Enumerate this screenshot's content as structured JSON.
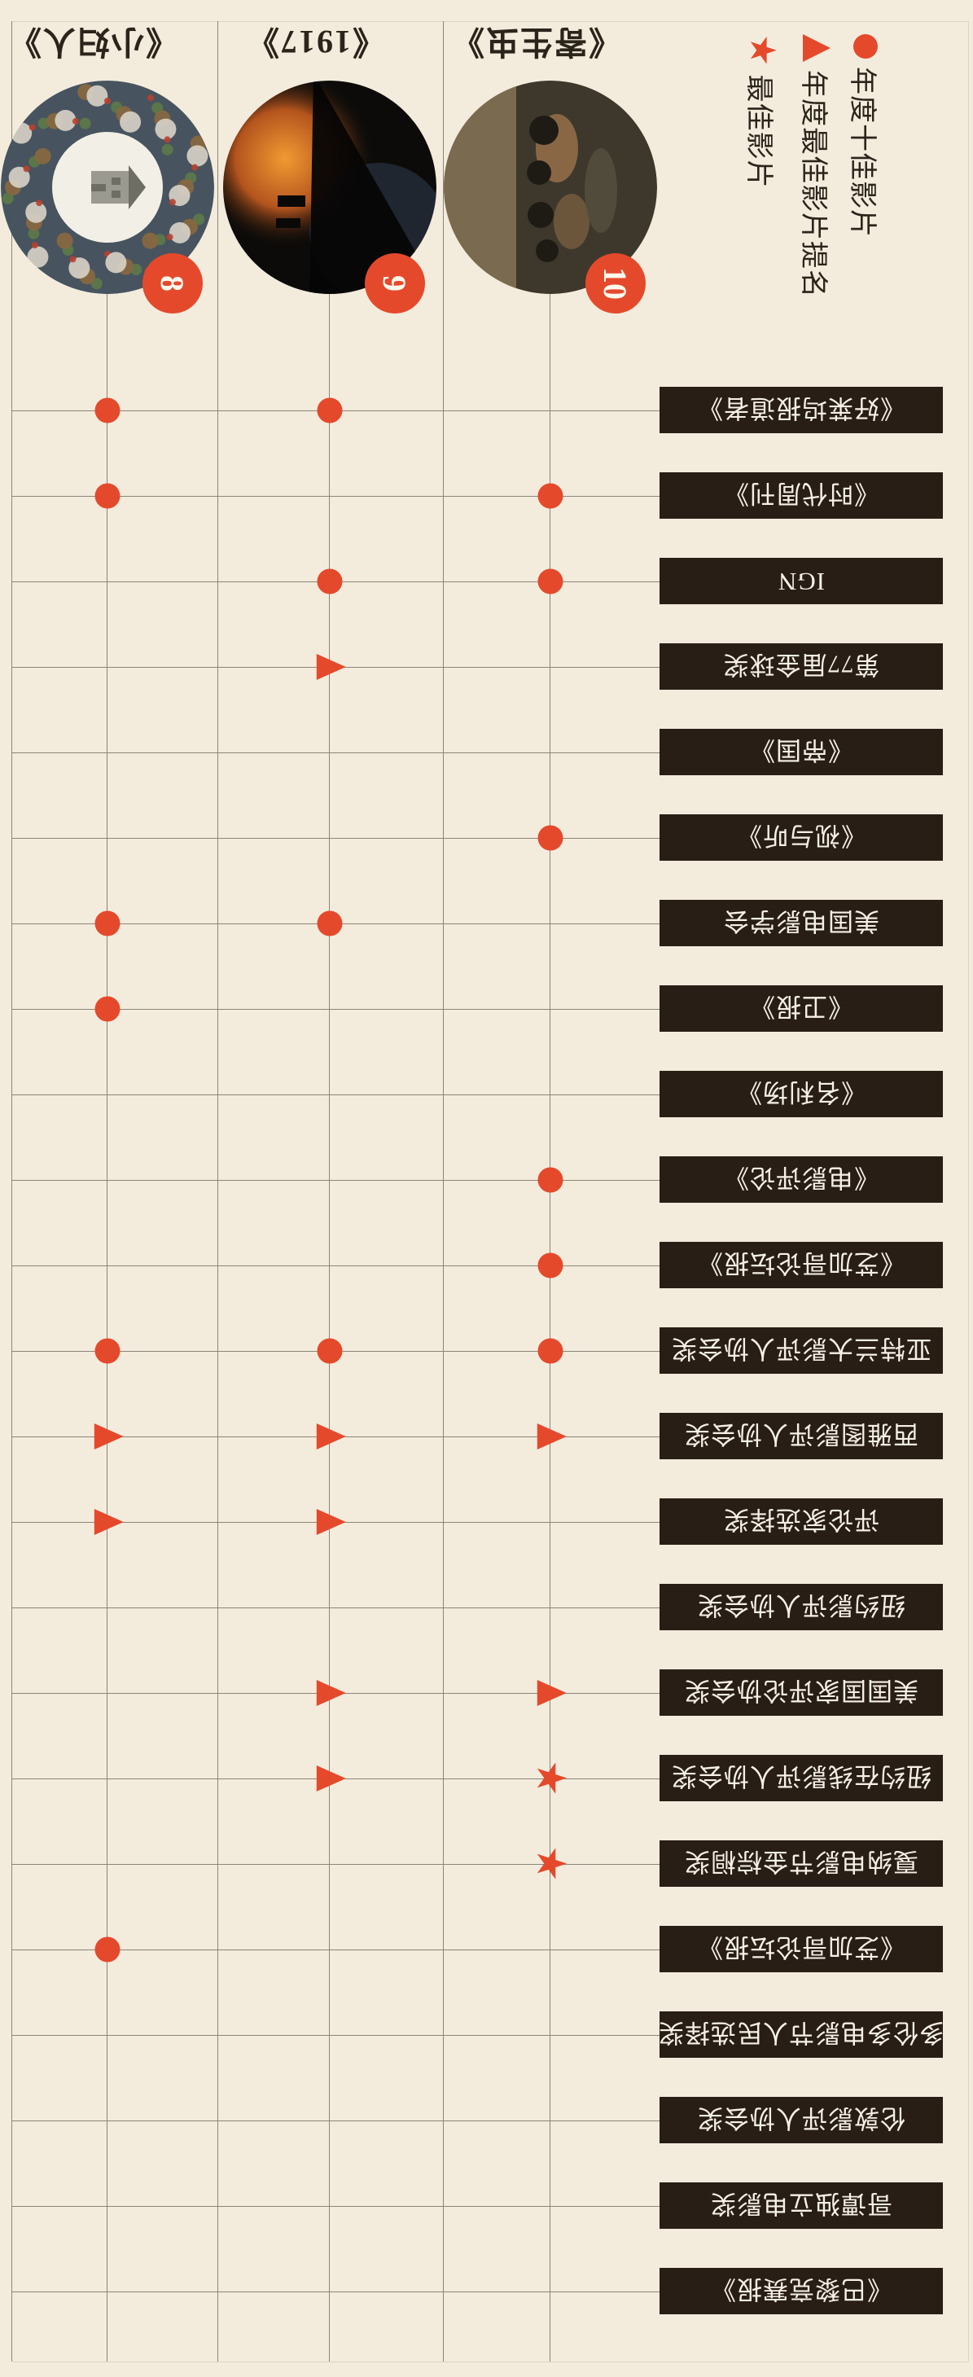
{
  "colors": {
    "background": "#F3ECDD",
    "accent": "#E5492B",
    "grid": "#8B8478",
    "frame_light": "#DCD5C3",
    "bar_background": "#281E15",
    "bar_text": "#F6F1E6",
    "ink": "#2B241B"
  },
  "legend": {
    "items": [
      {
        "marker": "dot",
        "symbol": "●",
        "label": "年度十佳影片"
      },
      {
        "marker": "triangle",
        "symbol": "▲",
        "label": "年度最佳影片提名"
      },
      {
        "marker": "star",
        "symbol": "★",
        "label": "最佳影片"
      }
    ]
  },
  "movies": [
    {
      "badge": "8",
      "title": "《小妇人》",
      "art": {
        "base": "#47545F",
        "center": "#F2EFE6",
        "house": "#9A9A90",
        "roof": "#6E6E64",
        "accents": [
          "#B8402E",
          "#5C7A48",
          "#8A683F",
          "#D8D3C8"
        ]
      }
    },
    {
      "badge": "9",
      "title": "《1917》",
      "art": {
        "base": "#0C0B09",
        "glow": "#F09A32",
        "ember": "#B4541E",
        "cool": "#46597A",
        "wedge": "#060505"
      }
    },
    {
      "badge": "10",
      "title": "《寄生虫》",
      "art": {
        "base": "#3E382C",
        "warm": "#A97C50",
        "warm2": "#8A6A48",
        "pale": "#55503E",
        "band": "#8F7C5C",
        "dark": "#1E1B15"
      }
    }
  ],
  "chart_data": {
    "type": "table",
    "title": "",
    "categories": [
      "《好莱坞报道者》",
      "《时代周刊》",
      "IGN",
      "第77届金球奖",
      "《帝国》",
      "《视与听》",
      "美国电影学会",
      "《卫报》",
      "《名利场》",
      "《电影评论》",
      "《芝加哥论坛报》",
      "亚特兰大影评人协会奖",
      "西雅图影评人协会奖",
      "评论家选择奖",
      "纽约影评人协会奖",
      "美国国家评论协会奖",
      "纽约在线影评人协会奖",
      "戛纳电影节金棕榈奖",
      "《芝加哥论坛报》",
      "多伦多电影节人民选择奖",
      "伦敦影评人协会奖",
      "哥谭独立电影奖",
      "《巴黎竞赛报》"
    ],
    "series": [
      {
        "name": "《小妇人》",
        "rank": 8,
        "values": [
          "dot",
          "dot",
          null,
          null,
          null,
          null,
          "dot",
          "dot",
          null,
          null,
          null,
          "dot",
          "triangle",
          "triangle",
          null,
          null,
          null,
          null,
          "dot",
          null,
          null,
          null,
          null
        ]
      },
      {
        "name": "《1917》",
        "rank": 9,
        "values": [
          "dot",
          null,
          "dot",
          "triangle",
          null,
          null,
          "dot",
          null,
          null,
          null,
          null,
          "dot",
          "triangle",
          "triangle",
          null,
          "triangle",
          "triangle",
          null,
          null,
          null,
          null,
          null,
          null
        ]
      },
      {
        "name": "《寄生虫》",
        "rank": 10,
        "values": [
          null,
          "dot",
          "dot",
          null,
          null,
          "dot",
          null,
          null,
          null,
          "dot",
          "dot",
          "dot",
          "triangle",
          null,
          null,
          "triangle",
          "star",
          "star",
          null,
          null,
          null,
          null,
          null
        ]
      }
    ],
    "legend_position": "top-left-of-original",
    "grid": true,
    "value_legend": {
      "dot": "年度十佳影片",
      "triangle": "年度最佳影片提名",
      "star": "最佳影片"
    }
  }
}
